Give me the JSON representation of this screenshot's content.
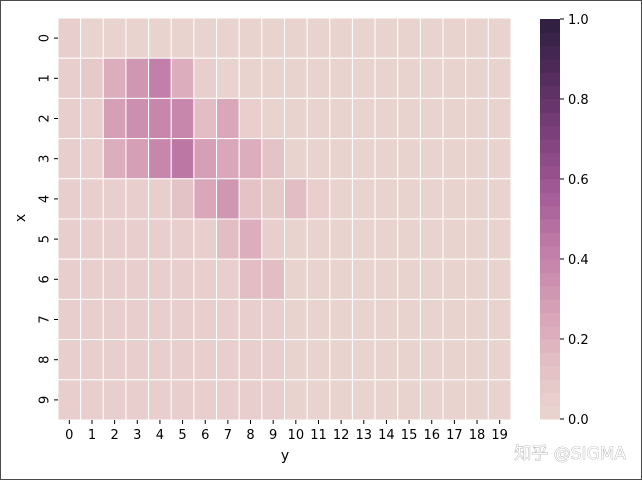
{
  "chart_data": {
    "type": "heatmap",
    "xlabel": "y",
    "ylabel": "x",
    "x_categories": [
      "0",
      "1",
      "2",
      "3",
      "4",
      "5",
      "6",
      "7",
      "8",
      "9",
      "10",
      "11",
      "12",
      "13",
      "14",
      "15",
      "16",
      "17",
      "18",
      "19"
    ],
    "y_categories": [
      "0",
      "1",
      "2",
      "3",
      "4",
      "5",
      "6",
      "7",
      "8",
      "9"
    ],
    "values": [
      [
        0.04,
        0.02,
        0.02,
        0.02,
        0.02,
        0.02,
        0.02,
        0.02,
        0.02,
        0.02,
        0.02,
        0.02,
        0.02,
        0.02,
        0.02,
        0.02,
        0.02,
        0.02,
        0.02,
        0.02
      ],
      [
        0.04,
        0.08,
        0.22,
        0.3,
        0.4,
        0.2,
        0.04,
        0.02,
        0.02,
        0.02,
        0.02,
        0.02,
        0.02,
        0.02,
        0.02,
        0.02,
        0.02,
        0.02,
        0.02,
        0.02
      ],
      [
        0.04,
        0.06,
        0.28,
        0.34,
        0.38,
        0.38,
        0.16,
        0.24,
        0.06,
        0.02,
        0.02,
        0.02,
        0.02,
        0.02,
        0.02,
        0.02,
        0.02,
        0.02,
        0.02,
        0.02
      ],
      [
        0.04,
        0.04,
        0.2,
        0.28,
        0.38,
        0.44,
        0.28,
        0.26,
        0.2,
        0.1,
        0.02,
        0.02,
        0.02,
        0.02,
        0.02,
        0.02,
        0.02,
        0.02,
        0.02,
        0.02
      ],
      [
        0.04,
        0.04,
        0.04,
        0.04,
        0.04,
        0.1,
        0.26,
        0.32,
        0.1,
        0.08,
        0.14,
        0.06,
        0.02,
        0.02,
        0.02,
        0.02,
        0.02,
        0.02,
        0.02,
        0.02
      ],
      [
        0.04,
        0.04,
        0.04,
        0.04,
        0.04,
        0.04,
        0.06,
        0.16,
        0.22,
        0.04,
        0.02,
        0.02,
        0.02,
        0.02,
        0.02,
        0.02,
        0.02,
        0.02,
        0.02,
        0.02
      ],
      [
        0.04,
        0.04,
        0.04,
        0.04,
        0.04,
        0.04,
        0.04,
        0.04,
        0.16,
        0.14,
        0.02,
        0.02,
        0.02,
        0.02,
        0.02,
        0.02,
        0.02,
        0.02,
        0.02,
        0.02
      ],
      [
        0.04,
        0.04,
        0.04,
        0.04,
        0.04,
        0.04,
        0.04,
        0.04,
        0.04,
        0.04,
        0.02,
        0.02,
        0.02,
        0.02,
        0.02,
        0.02,
        0.02,
        0.02,
        0.02,
        0.02
      ],
      [
        0.04,
        0.04,
        0.04,
        0.04,
        0.04,
        0.04,
        0.04,
        0.04,
        0.04,
        0.04,
        0.02,
        0.02,
        0.02,
        0.02,
        0.02,
        0.02,
        0.02,
        0.02,
        0.02,
        0.02
      ],
      [
        0.04,
        0.04,
        0.04,
        0.04,
        0.04,
        0.04,
        0.04,
        0.04,
        0.04,
        0.04,
        0.02,
        0.02,
        0.02,
        0.02,
        0.02,
        0.02,
        0.02,
        0.02,
        0.02,
        0.02
      ]
    ],
    "vmin": 0.0,
    "vmax": 1.0,
    "colorbar_ticks": [
      "0.0",
      "0.2",
      "0.4",
      "0.6",
      "0.8",
      "1.0"
    ],
    "colorbar_levels": 30,
    "colormap_stops": [
      "#ead6d0",
      "#e3bfc4",
      "#d59eb6",
      "#c07ca8",
      "#a25a96",
      "#7c3f7b",
      "#532d5e",
      "#2d1e3e"
    ],
    "cell_border_color": "#ffffff",
    "grid": false,
    "colorbar_position": "right"
  },
  "watermark": "知乎 @SIGMA"
}
